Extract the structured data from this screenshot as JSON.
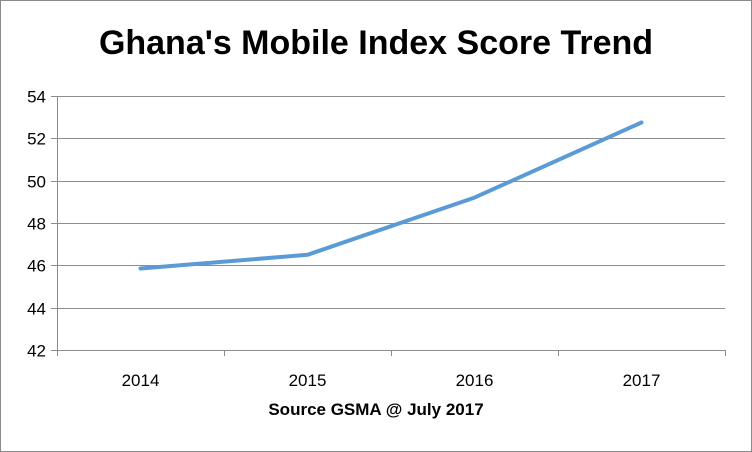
{
  "chart_data": {
    "type": "line",
    "title": "Ghana's Mobile Index Score Trend",
    "xlabel": "Source GSMA @ July 2017",
    "ylabel": "",
    "categories": [
      "2014",
      "2015",
      "2016",
      "2017"
    ],
    "series": [
      {
        "values": [
          45.85,
          46.5,
          49.2,
          52.75
        ],
        "color": "#5b9bd5"
      }
    ],
    "ylim": [
      42,
      54
    ],
    "yticks": [
      42,
      44,
      46,
      48,
      50,
      52,
      54
    ],
    "grid": true,
    "legend": "none"
  }
}
